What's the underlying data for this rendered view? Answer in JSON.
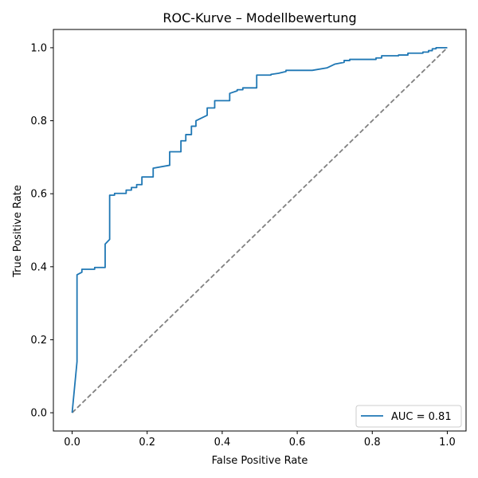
{
  "chart_data": {
    "type": "line",
    "title": "ROC-Kurve – Modellbewertung",
    "xlabel": "False Positive Rate",
    "ylabel": "True Positive Rate",
    "xlim": [
      -0.05,
      1.05
    ],
    "ylim": [
      -0.05,
      1.05
    ],
    "xticks": [
      "0.0",
      "0.2",
      "0.4",
      "0.6",
      "0.8",
      "1.0"
    ],
    "yticks": [
      "0.0",
      "0.2",
      "0.4",
      "0.6",
      "0.8",
      "1.0"
    ],
    "grid": false,
    "legend_position": "lower-right",
    "series": [
      {
        "name": "AUC = 0.81",
        "color": "#1f77b4",
        "style": "solid",
        "x": [
          0.0,
          0.013,
          0.013,
          0.026,
          0.026,
          0.06,
          0.06,
          0.088,
          0.088,
          0.1,
          0.1,
          0.113,
          0.113,
          0.144,
          0.144,
          0.158,
          0.158,
          0.172,
          0.172,
          0.186,
          0.186,
          0.216,
          0.216,
          0.26,
          0.26,
          0.29,
          0.29,
          0.303,
          0.303,
          0.318,
          0.318,
          0.33,
          0.33,
          0.36,
          0.36,
          0.38,
          0.38,
          0.39,
          0.39,
          0.42,
          0.42,
          0.44,
          0.44,
          0.455,
          0.455,
          0.492,
          0.492,
          0.53,
          0.53,
          0.55,
          0.55,
          0.57,
          0.57,
          0.64,
          0.64,
          0.68,
          0.68,
          0.7,
          0.7,
          0.725,
          0.725,
          0.74,
          0.74,
          0.81,
          0.81,
          0.825,
          0.825,
          0.87,
          0.87,
          0.895,
          0.895,
          0.935,
          0.935,
          0.95,
          0.95,
          0.96,
          0.96,
          0.97,
          0.97,
          1.0
        ],
        "y": [
          0.0,
          0.14,
          0.378,
          0.385,
          0.393,
          0.393,
          0.398,
          0.398,
          0.462,
          0.475,
          0.596,
          0.596,
          0.601,
          0.601,
          0.61,
          0.61,
          0.617,
          0.617,
          0.625,
          0.625,
          0.646,
          0.646,
          0.67,
          0.678,
          0.715,
          0.715,
          0.745,
          0.745,
          0.762,
          0.762,
          0.785,
          0.785,
          0.8,
          0.815,
          0.835,
          0.835,
          0.855,
          0.855,
          0.855,
          0.855,
          0.875,
          0.882,
          0.885,
          0.885,
          0.89,
          0.89,
          0.925,
          0.925,
          0.927,
          0.93,
          0.93,
          0.935,
          0.938,
          0.938,
          0.938,
          0.945,
          0.945,
          0.955,
          0.955,
          0.96,
          0.965,
          0.965,
          0.968,
          0.968,
          0.972,
          0.972,
          0.978,
          0.978,
          0.98,
          0.98,
          0.985,
          0.985,
          0.988,
          0.988,
          0.992,
          0.992,
          0.997,
          0.997,
          1.0,
          1.0
        ]
      },
      {
        "name": "",
        "color": "#808080",
        "style": "dashed",
        "x": [
          0.0,
          1.0
        ],
        "y": [
          0.0,
          1.0
        ]
      }
    ]
  }
}
